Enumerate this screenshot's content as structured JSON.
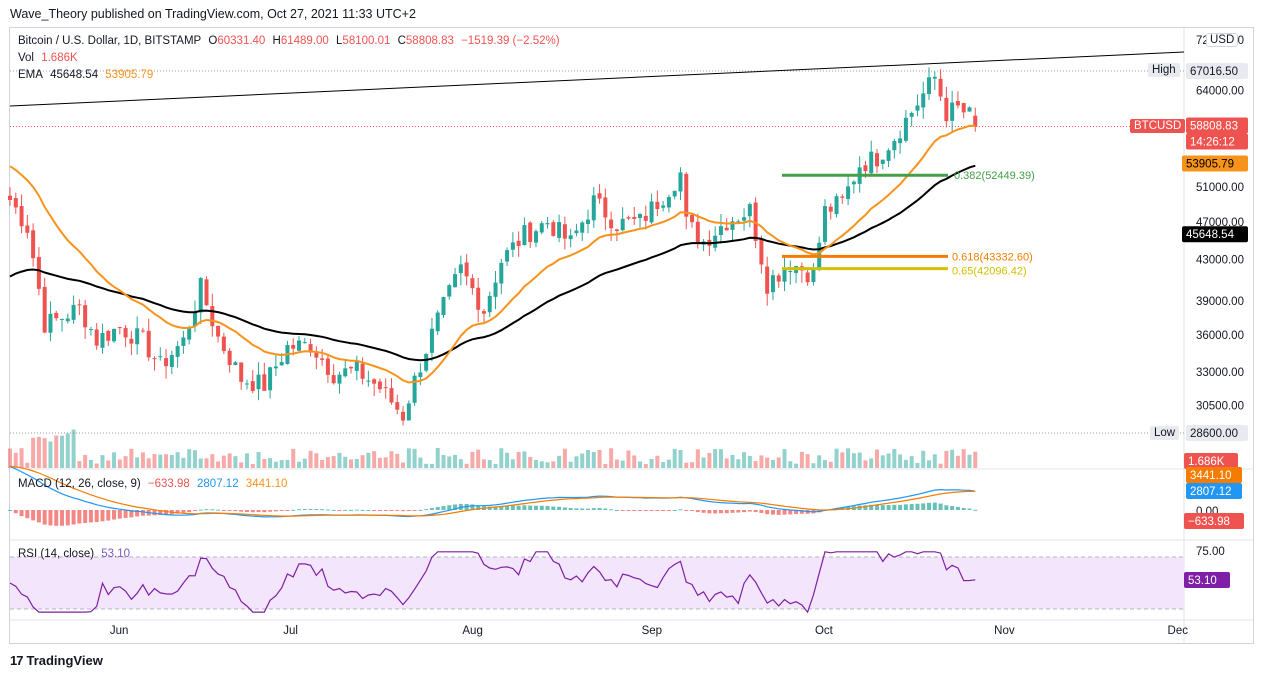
{
  "publisher_line": "Wave_Theory published on TradingView.com, Oct 27, 2021 11:33 UTC+2",
  "brand": "TradingView",
  "currency_button": "USD",
  "main": {
    "symbol_title": "Bitcoin / U.S. Dollar, 1D, BITSTAMP",
    "ohlc": {
      "o_label": "O",
      "o": "60331.40",
      "h_label": "H",
      "h": "61489.00",
      "l_label": "L",
      "l": "58100.01",
      "c_label": "C",
      "c": "58808.83",
      "change": "−1519.39 (−2.52%)"
    },
    "vol_label": "Vol",
    "vol_value": "1.686K",
    "ema_label": "EMA",
    "ema1_value": "45648.54",
    "ema2_value": "53905.79",
    "high_tag": "High",
    "high_value": "67016.50",
    "low_tag": "Low",
    "low_value": "28600.00",
    "ticker_label": "BTCUSD",
    "last_price": "58808.83",
    "countdown": "14:26:12",
    "ema_fast_tag": "53905.79",
    "ema_slow_tag": "45648.54",
    "fib": [
      {
        "text": "0.382(52449.39)",
        "color": "#43a047"
      },
      {
        "text": "0.618(43332.60)",
        "color": "#f57c00"
      },
      {
        "text": "0.65(42096.42)",
        "color": "#d4c000"
      }
    ]
  },
  "price_axis": [
    "72000.00",
    "67016.50",
    "64000.00",
    "58808.83",
    "53905.79",
    "51000.00",
    "47000.00",
    "45648.54",
    "43000.00",
    "39000.00",
    "36000.00",
    "33000.00",
    "30500.00",
    "28600.00"
  ],
  "volume_tag": "1.686K",
  "macd": {
    "title": "MACD (12, 26, close, 9)",
    "hist": "−633.98",
    "macd": "2807.12",
    "signal": "3441.10",
    "axis_zero": "0.00",
    "tags": {
      "signal": "3441.10",
      "macd": "2807.12",
      "hist": "−633.98"
    }
  },
  "rsi": {
    "title": "RSI (14, close)",
    "value": "53.10",
    "axis_top": "75.00",
    "tag": "53.10"
  },
  "time_axis": [
    "Jun",
    "Jul",
    "Aug",
    "Sep",
    "Oct",
    "Nov",
    "Dec"
  ],
  "colors": {
    "up": "#26a69a",
    "down": "#ef5350",
    "ema_fast": "#f7931a",
    "ema_slow": "#000000",
    "macd_line": "#2196f3",
    "signal_line": "#f57c00",
    "rsi_line": "#7e1fa5",
    "rsi_band": "#f3e5fc"
  },
  "chart_data": {
    "type": "candlestick",
    "title": "Bitcoin / U.S. Dollar, 1D, BITSTAMP",
    "x_range": [
      "2021-05-13",
      "2021-10-27"
    ],
    "ylim": [
      28600,
      67016.5
    ],
    "y_scale": "log",
    "key_levels": {
      "high": 67016.5,
      "low": 28600,
      "last": 58808.83
    },
    "series": [
      {
        "name": "EMA",
        "last": 45648.54
      },
      {
        "name": "EMA",
        "last": 53905.79
      }
    ],
    "fibonacci": [
      {
        "level": 0.382,
        "price": 52449.39
      },
      {
        "level": 0.618,
        "price": 43332.6
      },
      {
        "level": 0.65,
        "price": 42096.42
      }
    ],
    "indicators": {
      "macd": {
        "params": "12, 26, close, 9",
        "hist": -633.98,
        "macd": 2807.12,
        "signal": 3441.1
      },
      "rsi": {
        "params": "14, close",
        "value": 53.1
      }
    },
    "close_path": [
      [
        "May 13",
        49500
      ],
      [
        "May 16",
        46400
      ],
      [
        "May 19",
        37000
      ],
      [
        "May 21",
        37300
      ],
      [
        "May 25",
        38400
      ],
      [
        "May 28",
        35600
      ],
      [
        "Jun 1",
        36700
      ],
      [
        "Jun 5",
        35500
      ],
      [
        "Jun 8",
        33500
      ],
      [
        "Jun 12",
        35500
      ],
      [
        "Jun 15",
        40200
      ],
      [
        "Jun 18",
        35800
      ],
      [
        "Jun 22",
        32500
      ],
      [
        "Jun 26",
        32000
      ],
      [
        "Jun 30",
        35000
      ],
      [
        "Jul 4",
        35200
      ],
      [
        "Jul 8",
        32900
      ],
      [
        "Jul 12",
        33100
      ],
      [
        "Jul 16",
        31800
      ],
      [
        "Jul 20",
        29800
      ],
      [
        "Jul 23",
        33600
      ],
      [
        "Jul 26",
        37300
      ],
      [
        "Jul 30",
        42000
      ],
      [
        "Aug 3",
        38200
      ],
      [
        "Aug 6",
        42900
      ],
      [
        "Aug 10",
        45600
      ],
      [
        "Aug 14",
        47000
      ],
      [
        "Aug 18",
        44700
      ],
      [
        "Aug 22",
        49300
      ],
      [
        "Aug 26",
        46800
      ],
      [
        "Aug 30",
        47000
      ],
      [
        "Sep 3",
        50000
      ],
      [
        "Sep 6",
        52700
      ],
      [
        "Sep 7",
        46800
      ],
      [
        "Sep 10",
        44900
      ],
      [
        "Sep 14",
        47100
      ],
      [
        "Sep 18",
        48300
      ],
      [
        "Sep 21",
        40700
      ],
      [
        "Sep 25",
        42700
      ],
      [
        "Sep 29",
        41500
      ],
      [
        "Oct 1",
        48200
      ],
      [
        "Oct 4",
        49200
      ],
      [
        "Oct 7",
        53800
      ],
      [
        "Oct 10",
        54700
      ],
      [
        "Oct 13",
        57400
      ],
      [
        "Oct 16",
        60900
      ],
      [
        "Oct 20",
        66000
      ],
      [
        "Oct 22",
        60700
      ],
      [
        "Oct 24",
        61300
      ],
      [
        "Oct 26",
        60300
      ],
      [
        "Oct 27",
        58808.83
      ]
    ]
  }
}
